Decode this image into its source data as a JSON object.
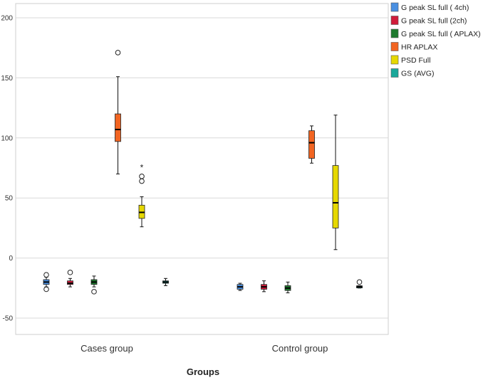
{
  "chart_data": {
    "type": "boxplot",
    "title": "",
    "xlabel": "Groups",
    "ylabel": "",
    "ylim": [
      -65,
      210
    ],
    "yticks": [
      -50,
      0,
      50,
      100,
      150,
      200
    ],
    "categories": [
      "Cases group",
      "Control group"
    ],
    "grid": true,
    "legend_position": "top-right",
    "series": [
      {
        "name": "G peak SL full ( 4ch)",
        "color": "#4a90e2",
        "boxes": [
          {
            "min": -24,
            "q1": -22,
            "median": -20,
            "q3": -18,
            "max": -16,
            "outliers": [
              {
                "value": -14,
                "marker": "circle"
              },
              {
                "value": -26,
                "marker": "circle"
              }
            ]
          },
          {
            "min": -27,
            "q1": -26,
            "median": -24,
            "q3": -22,
            "max": -21,
            "outliers": []
          }
        ]
      },
      {
        "name": "G peak SL full (2ch)",
        "color": "#d01c3a",
        "boxes": [
          {
            "min": -24,
            "q1": -22,
            "median": -21,
            "q3": -19,
            "max": -17,
            "outliers": [
              {
                "value": -12,
                "marker": "circle"
              }
            ]
          },
          {
            "min": -28,
            "q1": -26,
            "median": -24,
            "q3": -22,
            "max": -19,
            "outliers": []
          }
        ]
      },
      {
        "name": "G peak SL full ( APLAX)",
        "color": "#1e7a2e",
        "boxes": [
          {
            "min": -24,
            "q1": -22,
            "median": -20,
            "q3": -18,
            "max": -15,
            "outliers": [
              {
                "value": -28,
                "marker": "circle"
              }
            ]
          },
          {
            "min": -29,
            "q1": -27,
            "median": -25,
            "q3": -23,
            "max": -20,
            "outliers": []
          }
        ]
      },
      {
        "name": "HR APLAX",
        "color": "#f26522",
        "boxes": [
          {
            "min": 70,
            "q1": 97,
            "median": 107,
            "q3": 120,
            "max": 151,
            "outliers": [
              {
                "value": 171,
                "marker": "circle"
              }
            ]
          },
          {
            "min": 79,
            "q1": 83,
            "median": 96,
            "q3": 106,
            "max": 110,
            "outliers": []
          }
        ]
      },
      {
        "name": "PSD Full",
        "color": "#e6d800",
        "boxes": [
          {
            "min": 26,
            "q1": 33,
            "median": 38,
            "q3": 44,
            "max": 51,
            "outliers": [
              {
                "value": 64,
                "marker": "circle"
              },
              {
                "value": 68,
                "marker": "circle"
              },
              {
                "value": 77,
                "marker": "star"
              }
            ]
          },
          {
            "min": 7,
            "q1": 25,
            "median": 46,
            "q3": 77,
            "max": 119,
            "outliers": []
          }
        ]
      },
      {
        "name": "GS (AVG)",
        "color": "#1aa89a",
        "boxes": [
          {
            "min": -23,
            "q1": -21,
            "median": -20,
            "q3": -19,
            "max": -17,
            "outliers": []
          },
          {
            "min": -25,
            "q1": -24.5,
            "median": -24,
            "q3": -23.5,
            "max": -23,
            "outliers": [
              {
                "value": -20,
                "marker": "circle"
              }
            ]
          }
        ]
      }
    ]
  }
}
